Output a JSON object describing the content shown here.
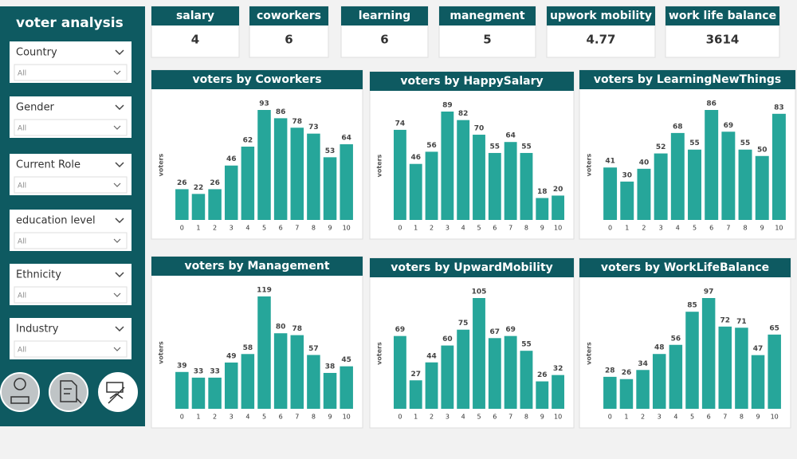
{
  "sidebar": {
    "title": "voter analysis",
    "slicers": [
      {
        "label": "Country",
        "selection": "All"
      },
      {
        "label": "Gender",
        "selection": "All"
      },
      {
        "label": "Current Role",
        "selection": "All"
      },
      {
        "label": "education level",
        "selection": "All"
      },
      {
        "label": "Ethnicity",
        "selection": "All"
      },
      {
        "label": "Industry",
        "selection": "All"
      }
    ]
  },
  "kpis": [
    {
      "label": "salary",
      "value": 4
    },
    {
      "label": "coworkers",
      "value": 6
    },
    {
      "label": "learning",
      "value": 6
    },
    {
      "label": "manegment",
      "value": 5
    },
    {
      "label": "upwork mobility",
      "value": 4.77
    },
    {
      "label": "work life balance",
      "value": 3614
    }
  ],
  "chart_data": [
    {
      "type": "bar",
      "title": "voters by Coworkers",
      "y_label": "voters",
      "color": "#26a69a",
      "categories": [
        "0",
        "1",
        "2",
        "3",
        "4",
        "5",
        "6",
        "7",
        "8",
        "9",
        "10"
      ],
      "values": [
        26,
        22,
        26,
        46,
        62,
        93,
        86,
        78,
        73,
        53,
        64
      ]
    },
    {
      "type": "bar",
      "title": "voters by HappySalary",
      "y_label": "voters",
      "color": "#26a69a",
      "categories": [
        "0",
        "1",
        "2",
        "3",
        "4",
        "5",
        "6",
        "7",
        "8",
        "9",
        "10"
      ],
      "values": [
        74,
        46,
        56,
        89,
        82,
        70,
        55,
        64,
        55,
        18,
        20
      ]
    },
    {
      "type": "bar",
      "title": "voters by LearningNewThings",
      "y_label": "voters",
      "color": "#26a69a",
      "categories": [
        "0",
        "1",
        "2",
        "3",
        "4",
        "5",
        "6",
        "7",
        "8",
        "9",
        "10"
      ],
      "values": [
        41,
        30,
        40,
        52,
        68,
        55,
        86,
        69,
        55,
        50,
        83
      ]
    },
    {
      "type": "bar",
      "title": "voters by Management",
      "y_label": "voters",
      "color": "#26a69a",
      "categories": [
        "0",
        "1",
        "2",
        "3",
        "4",
        "5",
        "6",
        "7",
        "8",
        "9",
        "10"
      ],
      "values": [
        39,
        33,
        33,
        49,
        58,
        119,
        80,
        78,
        57,
        38,
        45
      ]
    },
    {
      "type": "bar",
      "title": "voters by UpwardMobility",
      "y_label": "voters",
      "color": "#26a69a",
      "categories": [
        "0",
        "1",
        "2",
        "3",
        "4",
        "5",
        "6",
        "7",
        "8",
        "9",
        "10"
      ],
      "values": [
        69,
        27,
        44,
        60,
        75,
        105,
        67,
        69,
        55,
        26,
        32
      ]
    },
    {
      "type": "bar",
      "title": "voters by WorkLifeBalance",
      "y_label": "voters",
      "color": "#26a69a",
      "categories": [
        "0",
        "1",
        "2",
        "3",
        "4",
        "5",
        "6",
        "7",
        "8",
        "9",
        "10"
      ],
      "values": [
        28,
        26,
        34,
        48,
        56,
        85,
        97,
        72,
        71,
        47,
        65
      ]
    }
  ]
}
